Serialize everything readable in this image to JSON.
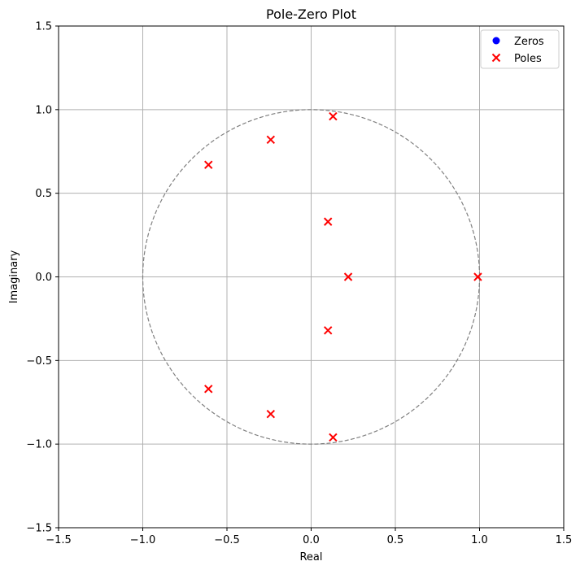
{
  "chart_data": {
    "type": "scatter",
    "title": "Pole-Zero Plot",
    "xlabel": "Real",
    "ylabel": "Imaginary",
    "xlim": [
      -1.5,
      1.5
    ],
    "ylim": [
      -1.5,
      1.5
    ],
    "xticks": [
      -1.5,
      -1.0,
      -0.5,
      0.0,
      0.5,
      1.0,
      1.5
    ],
    "yticks": [
      -1.5,
      -1.0,
      -0.5,
      0.0,
      0.5,
      1.0,
      1.5
    ],
    "xtick_labels": [
      "−1.5",
      "−1.0",
      "−0.5",
      "0.0",
      "0.5",
      "1.0",
      "1.5"
    ],
    "ytick_labels": [
      "−1.5",
      "−1.0",
      "−0.5",
      "0.0",
      "0.5",
      "1.0",
      "1.5"
    ],
    "grid": true,
    "unit_circle": true,
    "legend_position": "top-right",
    "series": [
      {
        "name": "Zeros",
        "marker": "circle",
        "color": "#0000ff",
        "points": []
      },
      {
        "name": "Poles",
        "marker": "x",
        "color": "#ff0000",
        "points": [
          [
            0.13,
            0.96
          ],
          [
            -0.24,
            0.82
          ],
          [
            -0.61,
            0.67
          ],
          [
            0.1,
            0.33
          ],
          [
            0.22,
            0.0
          ],
          [
            0.99,
            0.0
          ],
          [
            0.1,
            -0.32
          ],
          [
            -0.61,
            -0.67
          ],
          [
            -0.24,
            -0.82
          ],
          [
            0.13,
            -0.96
          ]
        ]
      }
    ]
  }
}
